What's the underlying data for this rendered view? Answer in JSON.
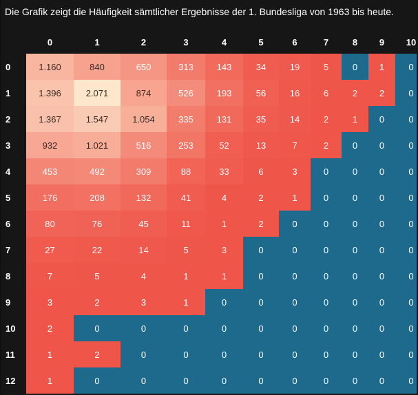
{
  "chart_data": {
    "type": "heatmap",
    "title": "Die Grafik zeigt die Häufigkeit sämtlicher Ergebnisse der 1. Bundesliga von 1963 bis heute.",
    "x": [
      "0",
      "1",
      "2",
      "3",
      "4",
      "5",
      "6",
      "7",
      "8",
      "9",
      "10"
    ],
    "y": [
      "0",
      "1",
      "2",
      "3",
      "4",
      "5",
      "6",
      "7",
      "8",
      "9",
      "10",
      "11",
      "12"
    ],
    "values": [
      [
        "1.160",
        "840",
        "650",
        "313",
        "143",
        "34",
        "19",
        "5",
        "0",
        "1",
        "0"
      ],
      [
        "1.396",
        "2.071",
        "874",
        "526",
        "193",
        "56",
        "16",
        "6",
        "2",
        "2",
        "0"
      ],
      [
        "1.367",
        "1.547",
        "1.054",
        "335",
        "131",
        "35",
        "14",
        "2",
        "1",
        "0",
        "0"
      ],
      [
        "932",
        "1.021",
        "516",
        "253",
        "52",
        "13",
        "7",
        "2",
        "0",
        "0",
        "0"
      ],
      [
        "453",
        "492",
        "309",
        "88",
        "33",
        "6",
        "3",
        "0",
        "0",
        "0",
        "0"
      ],
      [
        "176",
        "208",
        "132",
        "41",
        "4",
        "2",
        "1",
        "0",
        "0",
        "0",
        "0"
      ],
      [
        "80",
        "76",
        "45",
        "11",
        "1",
        "2",
        "0",
        "0",
        "0",
        "0",
        "0"
      ],
      [
        "27",
        "22",
        "14",
        "5",
        "3",
        "0",
        "0",
        "0",
        "0",
        "0",
        "0"
      ],
      [
        "7",
        "5",
        "4",
        "1",
        "1",
        "0",
        "0",
        "0",
        "0",
        "0",
        "0"
      ],
      [
        "3",
        "2",
        "3",
        "1",
        "0",
        "0",
        "0",
        "0",
        "0",
        "0",
        "0"
      ],
      [
        "2",
        "0",
        "0",
        "0",
        "0",
        "0",
        "0",
        "0",
        "0",
        "0",
        "0"
      ],
      [
        "1",
        "2",
        "0",
        "0",
        "0",
        "0",
        "0",
        "0",
        "0",
        "0",
        "0"
      ],
      [
        "1",
        "0",
        "0",
        "0",
        "0",
        "0",
        "0",
        "0",
        "0",
        "0",
        "0"
      ]
    ],
    "colors": {
      "zero": "#1e6a8c",
      "low": "#ef5448",
      "high": "#fde6cc"
    }
  }
}
